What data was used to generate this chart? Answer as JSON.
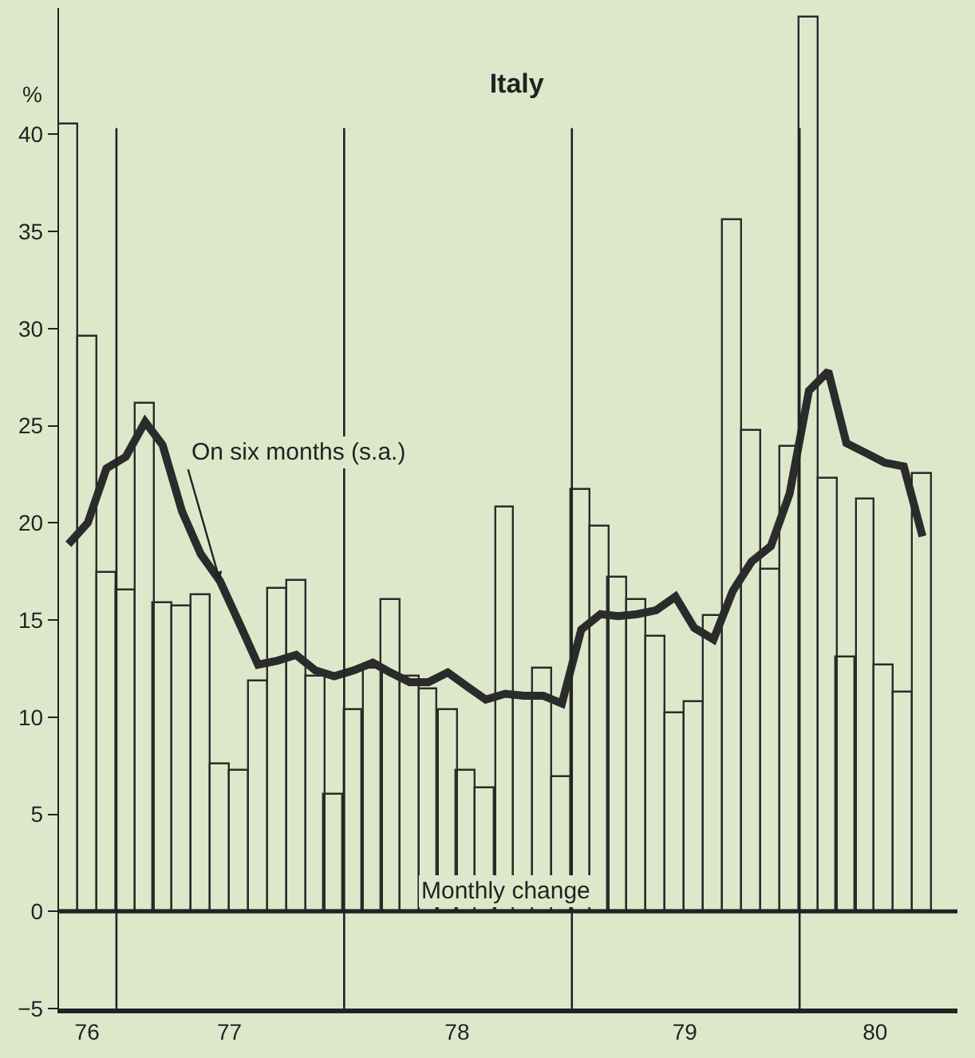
{
  "chart_data": {
    "type": "bar",
    "title": "Italy",
    "ylabel": "%",
    "x": [
      "1976-10-16",
      "1976-11-16",
      "1976-12-16",
      "1977-01-16",
      "1977-02-16",
      "1977-03-16",
      "1977-04-16",
      "1977-05-16",
      "1977-06-16",
      "1977-07-16",
      "1977-08-16",
      "1977-09-16",
      "1977-10-16",
      "1977-11-16",
      "1977-12-16",
      "1978-01-16",
      "1978-02-16",
      "1978-03-16",
      "1978-04-16",
      "1978-05-16",
      "1978-06-16",
      "1978-07-16",
      "1978-08-16",
      "1978-09-16",
      "1978-10-16",
      "1978-11-16",
      "1978-12-16",
      "1979-01-16",
      "1979-02-16",
      "1979-03-16",
      "1979-04-16",
      "1979-05-16",
      "1979-06-16",
      "1979-07-16",
      "1979-08-16",
      "1979-09-16",
      "1979-10-16",
      "1979-11-16",
      "1979-12-16",
      "1980-01-16",
      "1980-02-16",
      "1980-03-16",
      "1980-04-16",
      "1980-05-16",
      "1980-06-16",
      "1980-07-16"
    ],
    "series": [
      {
        "name": "Monthly change",
        "color": "#2b2b2b",
        "values": [
          40.5,
          29.6,
          17.4,
          16.5,
          26.1,
          15.9,
          15.7,
          16.3,
          7.6,
          7.2,
          11.8,
          16.6,
          17.0,
          12.1,
          6.0,
          10.4,
          12.5,
          16.0,
          12.1,
          11.4,
          10.4,
          7.2,
          6.3,
          20.8,
          11.1,
          12.5,
          6.9,
          21.7,
          19.8,
          17.2,
          16.0,
          14.1,
          10.2,
          10.8,
          15.2,
          35.6,
          24.7,
          17.6,
          23.9,
          46.0,
          22.3,
          13.1,
          21.2,
          12.7,
          11.3,
          22.5
        ]
      },
      {
        "name": "On six months (s.a.)",
        "type": "line",
        "color": "#2b2b2b",
        "values": [
          18.9,
          20.0,
          22.8,
          23.4,
          25.2,
          24.0,
          20.6,
          18.4,
          17.0,
          14.9,
          12.7,
          12.9,
          13.2,
          12.4,
          12.1,
          12.4,
          12.8,
          12.3,
          11.8,
          11.8,
          12.3,
          11.6,
          10.9,
          11.2,
          11.1,
          11.1,
          10.7,
          14.5,
          15.3,
          15.2,
          15.3,
          15.5,
          16.2,
          14.6,
          14.0,
          16.5,
          18.0,
          18.8,
          21.5,
          26.8,
          27.8,
          24.1,
          23.6,
          23.1,
          22.9,
          19.3
        ]
      }
    ],
    "xlim": [
      "1976-10-01",
      "1980-09-10"
    ],
    "xticks": [
      {
        "value": "1976-11-15",
        "label": "76"
      },
      {
        "value": "1977-07-01",
        "label": "77"
      },
      {
        "value": "1978-07-01",
        "label": "78"
      },
      {
        "value": "1979-07-01",
        "label": "79"
      },
      {
        "value": "1980-05-01",
        "label": "80"
      }
    ],
    "ylim": [
      -5,
      46.5
    ],
    "yticks": [
      {
        "value": -5,
        "label": "−5"
      },
      0,
      5,
      10,
      15,
      20,
      25,
      30,
      35,
      40
    ],
    "ref_lines": [
      {
        "axis": "x",
        "value": "1977-01-01"
      },
      {
        "axis": "x",
        "value": "1978-01-01"
      },
      {
        "axis": "x",
        "value": "1979-01-01"
      },
      {
        "axis": "x",
        "value": "1980-01-01"
      },
      {
        "axis": "y",
        "value": 0
      }
    ],
    "grid": false,
    "legend": false
  }
}
